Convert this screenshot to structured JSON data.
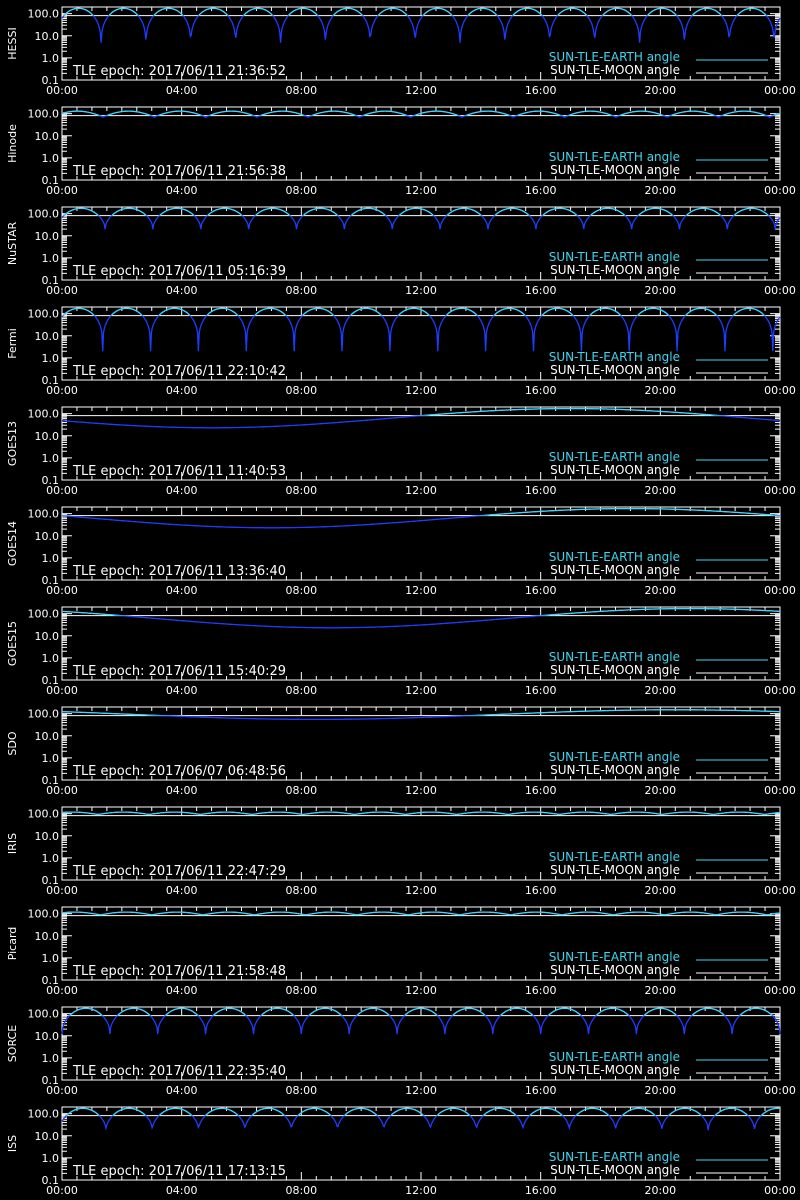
{
  "colors": {
    "background": "#000000",
    "axis": "#ffffff",
    "earth_line": "#3fd6f0",
    "earth_curve": "#1e3cff",
    "moon_line": "#ffffff"
  },
  "legend": {
    "earth": "SUN-TLE-EARTH angle",
    "moon": "SUN-TLE-MOON angle"
  },
  "chart_data": [
    {
      "type": "line",
      "name": "HESSI",
      "epoch_label": "TLE epoch: 2017/06/11 21:36:52",
      "xticks": [
        "00:00",
        "04:00",
        "08:00",
        "12:00",
        "16:00",
        "20:00",
        "00:00"
      ],
      "yticks": [
        "100.0",
        "10.0",
        "1.0",
        "0.1"
      ],
      "ylim": [
        0.1,
        200
      ],
      "yscale": "log",
      "xlim_hours": [
        0,
        24
      ],
      "earth_angle": {
        "shape": "orbit",
        "periods": 16,
        "phase": 0.13,
        "max": 175,
        "min": 2.0,
        "sharp": 3.5
      },
      "moon_angle": {
        "start": 82,
        "end": 82
      }
    },
    {
      "type": "line",
      "name": "Hinode",
      "epoch_label": "TLE epoch: 2017/06/11 21:56:38",
      "xticks": [
        "00:00",
        "04:00",
        "08:00",
        "12:00",
        "16:00",
        "20:00",
        "00:00"
      ],
      "yticks": [
        "100.0",
        "10.0",
        "1.0",
        "0.1"
      ],
      "ylim": [
        0.1,
        200
      ],
      "yscale": "log",
      "xlim_hours": [
        0,
        24
      ],
      "earth_angle": {
        "shape": "orbit",
        "periods": 14,
        "phase": 0.2,
        "max": 130,
        "min": 68,
        "sharp": 1.2
      },
      "moon_angle": {
        "start": 82,
        "end": 82
      }
    },
    {
      "type": "line",
      "name": "NuSTAR",
      "epoch_label": "TLE epoch: 2017/06/11 05:16:39",
      "xticks": [
        "00:00",
        "04:00",
        "08:00",
        "12:00",
        "16:00",
        "20:00",
        "00:00"
      ],
      "yticks": [
        "100.0",
        "10.0",
        "1.0",
        "0.1"
      ],
      "ylim": [
        0.1,
        200
      ],
      "yscale": "log",
      "xlim_hours": [
        0,
        24
      ],
      "earth_angle": {
        "shape": "orbit",
        "periods": 15,
        "phase": 0.1,
        "max": 175,
        "min": 20,
        "sharp": 2.0
      },
      "moon_angle": {
        "start": 82,
        "end": 82
      }
    },
    {
      "type": "line",
      "name": "Fermi",
      "epoch_label": "TLE epoch: 2017/06/11 22:10:42",
      "xticks": [
        "00:00",
        "04:00",
        "08:00",
        "12:00",
        "16:00",
        "20:00",
        "00:00"
      ],
      "yticks": [
        "100.0",
        "10.0",
        "1.0",
        "0.1"
      ],
      "ylim": [
        0.1,
        200
      ],
      "yscale": "log",
      "xlim_hours": [
        0,
        24
      ],
      "earth_angle": {
        "shape": "orbit",
        "periods": 15,
        "phase": 0.15,
        "max": 175,
        "min": 2.0,
        "sharp": 3.5
      },
      "moon_angle": {
        "start": 82,
        "end": 82
      }
    },
    {
      "type": "line",
      "name": "GOES13",
      "epoch_label": "TLE epoch: 2017/06/11 11:40:53",
      "xticks": [
        "00:00",
        "04:00",
        "08:00",
        "12:00",
        "16:00",
        "20:00",
        "00:00"
      ],
      "yticks": [
        "100.0",
        "10.0",
        "1.0",
        "0.1"
      ],
      "ylim": [
        0.1,
        200
      ],
      "yscale": "log",
      "xlim_hours": [
        0,
        24
      ],
      "earth_angle": {
        "shape": "daily",
        "min_hour": 5.0,
        "max": 170,
        "min": 23
      },
      "moon_angle": {
        "start": 82,
        "end": 82
      }
    },
    {
      "type": "line",
      "name": "GOES14",
      "epoch_label": "TLE epoch: 2017/06/11 13:36:40",
      "xticks": [
        "00:00",
        "04:00",
        "08:00",
        "12:00",
        "16:00",
        "20:00",
        "00:00"
      ],
      "yticks": [
        "100.0",
        "10.0",
        "1.0",
        "0.1"
      ],
      "ylim": [
        0.1,
        200
      ],
      "yscale": "log",
      "xlim_hours": [
        0,
        24
      ],
      "earth_angle": {
        "shape": "daily",
        "min_hour": 7.0,
        "max": 170,
        "min": 23
      },
      "moon_angle": {
        "start": 82,
        "end": 82
      }
    },
    {
      "type": "line",
      "name": "GOES15",
      "epoch_label": "TLE epoch: 2017/06/11 15:40:29",
      "xticks": [
        "00:00",
        "04:00",
        "08:00",
        "12:00",
        "16:00",
        "20:00",
        "00:00"
      ],
      "yticks": [
        "100.0",
        "10.0",
        "1.0",
        "0.1"
      ],
      "ylim": [
        0.1,
        200
      ],
      "yscale": "log",
      "xlim_hours": [
        0,
        24
      ],
      "earth_angle": {
        "shape": "daily",
        "min_hour": 9.0,
        "max": 170,
        "min": 23
      },
      "moon_angle": {
        "start": 82,
        "end": 82
      }
    },
    {
      "type": "line",
      "name": "SDO",
      "epoch_label": "TLE epoch: 2017/06/07 06:48:56",
      "xticks": [
        "00:00",
        "04:00",
        "08:00",
        "12:00",
        "16:00",
        "20:00",
        "00:00"
      ],
      "yticks": [
        "100.0",
        "10.0",
        "1.0",
        "0.1"
      ],
      "ylim": [
        0.1,
        200
      ],
      "yscale": "log",
      "xlim_hours": [
        0,
        24
      ],
      "earth_angle": {
        "shape": "daily",
        "min_hour": 8.5,
        "max": 150,
        "min": 55
      },
      "moon_angle": {
        "start": 82,
        "end": 82
      }
    },
    {
      "type": "line",
      "name": "IRIS",
      "epoch_label": "TLE epoch: 2017/06/11 22:47:29",
      "xticks": [
        "00:00",
        "04:00",
        "08:00",
        "12:00",
        "16:00",
        "20:00",
        "00:00"
      ],
      "yticks": [
        "100.0",
        "10.0",
        "1.0",
        "0.1"
      ],
      "ylim": [
        0.1,
        200
      ],
      "yscale": "log",
      "xlim_hours": [
        0,
        24
      ],
      "earth_angle": {
        "shape": "orbit",
        "periods": 14,
        "phase": 0.3,
        "max": 118,
        "min": 92,
        "sharp": 1.0
      },
      "moon_angle": {
        "start": 82,
        "end": 82
      }
    },
    {
      "type": "line",
      "name": "Picard",
      "epoch_label": "TLE epoch: 2017/06/11 21:58:48",
      "xticks": [
        "00:00",
        "04:00",
        "08:00",
        "12:00",
        "16:00",
        "20:00",
        "00:00"
      ],
      "yticks": [
        "100.0",
        "10.0",
        "1.0",
        "0.1"
      ],
      "ylim": [
        0.1,
        200
      ],
      "yscale": "log",
      "xlim_hours": [
        0,
        24
      ],
      "earth_angle": {
        "shape": "orbit",
        "periods": 14,
        "phase": 0.25,
        "max": 118,
        "min": 88,
        "sharp": 1.0
      },
      "moon_angle": {
        "start": 82,
        "end": 82
      }
    },
    {
      "type": "line",
      "name": "SORCE",
      "epoch_label": "TLE epoch: 2017/06/11 22:35:40",
      "xticks": [
        "00:00",
        "04:00",
        "08:00",
        "12:00",
        "16:00",
        "20:00",
        "00:00"
      ],
      "yticks": [
        "100.0",
        "10.0",
        "1.0",
        "0.1"
      ],
      "ylim": [
        0.1,
        200
      ],
      "yscale": "log",
      "xlim_hours": [
        0,
        24
      ],
      "earth_angle": {
        "shape": "orbit",
        "periods": 15,
        "phase": 0.0,
        "max": 175,
        "min": 12,
        "sharp": 2.2
      },
      "moon_angle": {
        "start": 82,
        "end": 82
      }
    },
    {
      "type": "line",
      "name": "ISS",
      "epoch_label": "TLE epoch: 2017/06/11 17:13:15",
      "xticks": [
        "00:00",
        "04:00",
        "08:00",
        "12:00",
        "16:00",
        "20:00",
        "00:00"
      ],
      "yticks": [
        "100.0",
        "10.0",
        "1.0",
        "0.1"
      ],
      "ylim": [
        0.1,
        200
      ],
      "yscale": "log",
      "xlim_hours": [
        0,
        24
      ],
      "earth_angle": {
        "shape": "orbit",
        "periods": 15.5,
        "phase": 0.05,
        "max": 175,
        "min": 18,
        "sharp": 2.0
      },
      "moon_angle": {
        "start": 82,
        "end": 82
      }
    }
  ]
}
